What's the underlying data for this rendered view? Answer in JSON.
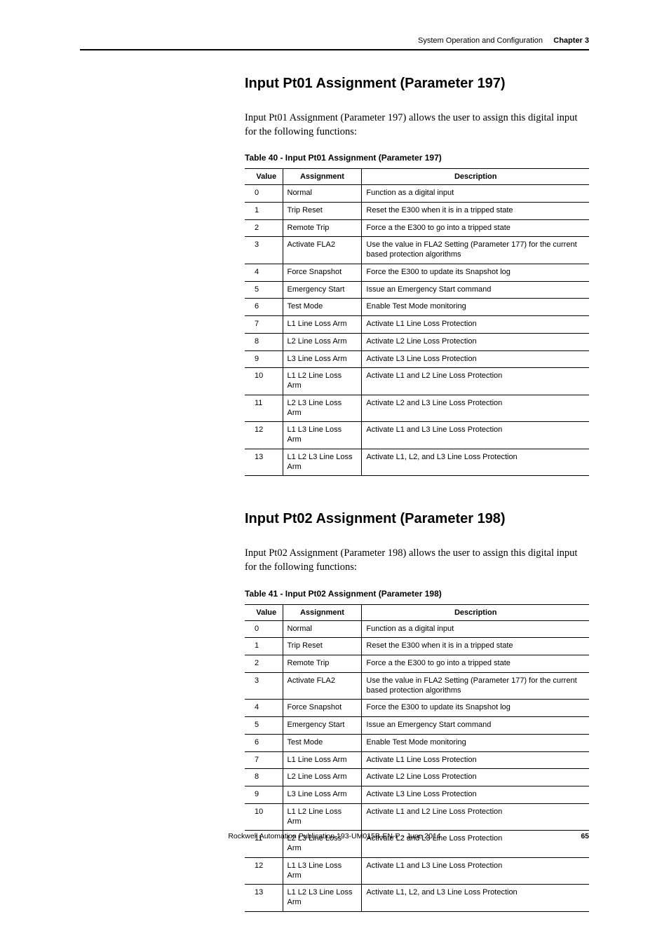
{
  "header": {
    "section": "System Operation and Configuration",
    "chapter": "Chapter 3"
  },
  "section1": {
    "title": "Input Pt01 Assignment (Parameter 197)",
    "body": "Input Pt01 Assignment (Parameter 197) allows the user to assign this digital input for the following functions:",
    "table_caption": "Table 40 - Input Pt01 Assignment (Parameter 197)"
  },
  "section2": {
    "title": "Input Pt02 Assignment (Parameter 198)",
    "body": "Input Pt02 Assignment (Parameter 198) allows the user to assign this digital input for the following functions:",
    "table_caption": "Table 41 - Input Pt02 Assignment (Parameter 198)"
  },
  "table_headers": {
    "value": "Value",
    "assignment": "Assignment",
    "description": "Description"
  },
  "table_rows": [
    {
      "v": "0",
      "a": "Normal",
      "d": "Function as a digital input"
    },
    {
      "v": "1",
      "a": "Trip Reset",
      "d": "Reset the E300 when it is in a tripped state"
    },
    {
      "v": "2",
      "a": "Remote Trip",
      "d": "Force a the E300 to go into a tripped state"
    },
    {
      "v": "3",
      "a": "Activate FLA2",
      "d": "Use the value in FLA2 Setting (Parameter 177) for the current based protection algorithms"
    },
    {
      "v": "4",
      "a": "Force Snapshot",
      "d": "Force the E300 to update its Snapshot log"
    },
    {
      "v": "5",
      "a": "Emergency Start",
      "d": "Issue an Emergency Start command"
    },
    {
      "v": "6",
      "a": "Test Mode",
      "d": "Enable Test Mode monitoring"
    },
    {
      "v": "7",
      "a": "L1 Line Loss Arm",
      "d": "Activate L1 Line Loss Protection"
    },
    {
      "v": "8",
      "a": "L2 Line Loss Arm",
      "d": "Activate L2 Line Loss Protection"
    },
    {
      "v": "9",
      "a": "L3 Line Loss Arm",
      "d": "Activate L3 Line Loss Protection"
    },
    {
      "v": "10",
      "a": "L1 L2 Line Loss Arm",
      "d": "Activate L1 and L2 Line Loss Protection"
    },
    {
      "v": "11",
      "a": "L2 L3 Line Loss Arm",
      "d": "Activate L2 and L3 Line Loss Protection"
    },
    {
      "v": "12",
      "a": "L1 L3 Line Loss Arm",
      "d": "Activate L1 and L3 Line Loss Protection"
    },
    {
      "v": "13",
      "a": "L1 L2 L3 Line Loss Arm",
      "d": "Activate L1, L2, and L3 Line Loss Protection"
    }
  ],
  "footer": {
    "text": "Rockwell Automation Publication 193-UM015B-EN-P - June 2014",
    "page": "65"
  },
  "colors": {
    "text": "#000000",
    "bg": "#ffffff"
  },
  "fonts": {
    "heading_weight": "bold",
    "heading_size_pt": 15,
    "body_family": "serif",
    "table_size_pt": 8.5
  }
}
